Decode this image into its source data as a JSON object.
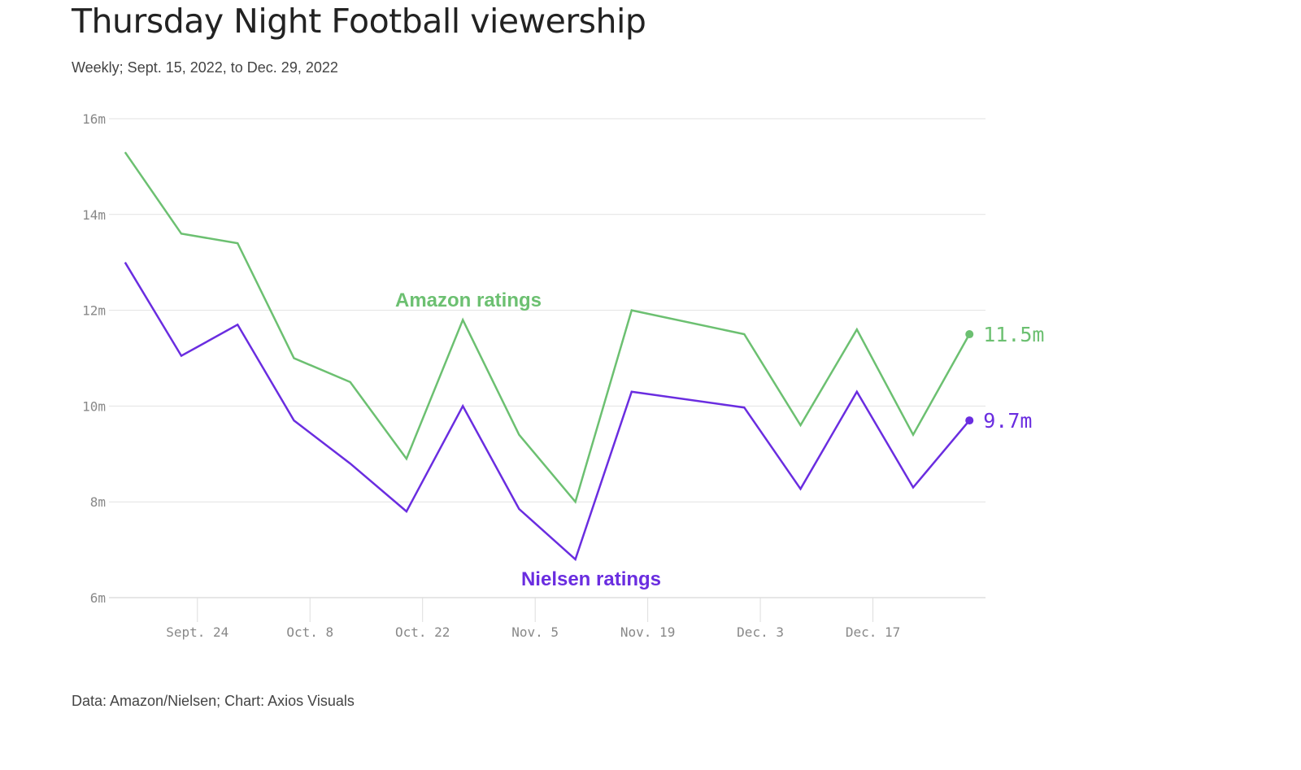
{
  "chart_data": {
    "type": "line",
    "title": "Thursday Night Football viewership",
    "subtitle": "Weekly; Sept. 15, 2022, to Dec. 29, 2022",
    "source": "Data: Amazon/Nielsen; Chart: Axios Visuals",
    "x": [
      "2022-09-15",
      "2022-09-22",
      "2022-09-29",
      "2022-10-06",
      "2022-10-13",
      "2022-10-20",
      "2022-10-27",
      "2022-11-03",
      "2022-11-10",
      "2022-11-17",
      "2022-12-01",
      "2022-12-08",
      "2022-12-15",
      "2022-12-22",
      "2022-12-29"
    ],
    "x_ticks": [
      {
        "date": "2022-09-24",
        "label": "Sept. 24"
      },
      {
        "date": "2022-10-08",
        "label": "Oct. 8"
      },
      {
        "date": "2022-10-22",
        "label": "Oct. 22"
      },
      {
        "date": "2022-11-05",
        "label": "Nov. 5"
      },
      {
        "date": "2022-11-19",
        "label": "Nov. 19"
      },
      {
        "date": "2022-12-03",
        "label": "Dec. 3"
      },
      {
        "date": "2022-12-17",
        "label": "Dec. 17"
      }
    ],
    "xlim": [
      "2022-09-13",
      "2022-12-31"
    ],
    "ylim": [
      6,
      16
    ],
    "y_ticks": [
      {
        "value": 6,
        "label": "6m"
      },
      {
        "value": 8,
        "label": "8m"
      },
      {
        "value": 10,
        "label": "10m"
      },
      {
        "value": 12,
        "label": "12m"
      },
      {
        "value": 14,
        "label": "14m"
      },
      {
        "value": 16,
        "label": "16m"
      }
    ],
    "grid": true,
    "series": [
      {
        "name": "Amazon ratings",
        "color": "#6cc071",
        "values": [
          15.3,
          13.6,
          13.4,
          11.0,
          10.5,
          8.9,
          11.8,
          9.4,
          8.0,
          12.0,
          11.5,
          9.6,
          11.6,
          9.4,
          11.5
        ],
        "end_label": "11.5m"
      },
      {
        "name": "Nielsen ratings",
        "color": "#6a2de0",
        "values": [
          13.0,
          11.05,
          11.7,
          9.7,
          8.8,
          7.8,
          10.0,
          7.85,
          6.8,
          10.3,
          9.97,
          8.27,
          10.3,
          8.3,
          9.7
        ],
        "end_label": "9.7m"
      }
    ]
  }
}
